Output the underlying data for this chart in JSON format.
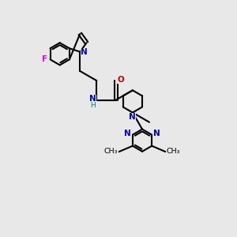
{
  "bg_color": "#e8e8e8",
  "bond_color": "#000000",
  "N_color": "#0000cd",
  "O_color": "#cc0000",
  "F_color": "#ee00ee",
  "H_color": "#008080",
  "line_width": 1.5,
  "fig_size": [
    3.0,
    3.0
  ],
  "dpi": 100,
  "xlim": [
    0,
    10
  ],
  "ylim": [
    0,
    10
  ]
}
